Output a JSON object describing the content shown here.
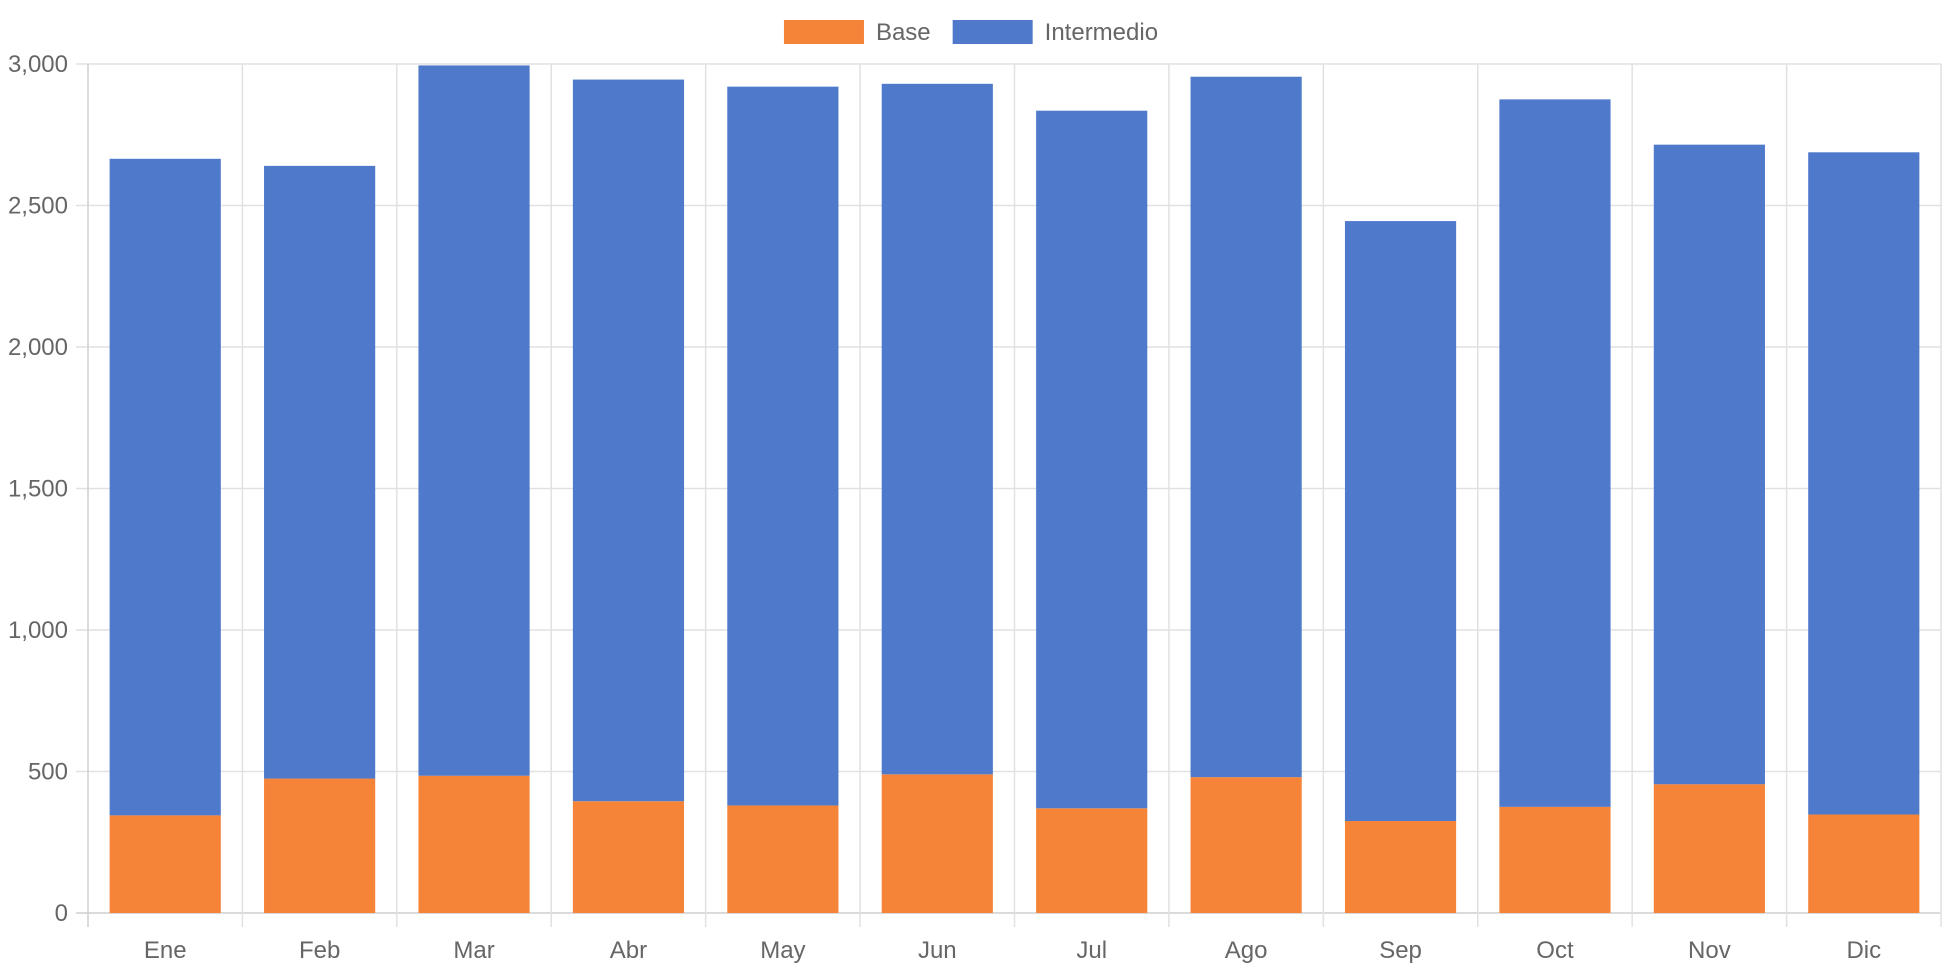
{
  "chart_data": {
    "type": "bar",
    "stacked": true,
    "title": "",
    "xlabel": "",
    "ylabel": "",
    "categories": [
      "Ene",
      "Feb",
      "Mar",
      "Abr",
      "May",
      "Jun",
      "Jul",
      "Ago",
      "Sep",
      "Oct",
      "Nov",
      "Dic"
    ],
    "series": [
      {
        "name": "Base",
        "color": "#f58338",
        "values": [
          345,
          475,
          485,
          395,
          380,
          490,
          370,
          480,
          325,
          375,
          455,
          348
        ]
      },
      {
        "name": "Intermedio",
        "color": "#4f7acb",
        "values": [
          2320,
          2165,
          2510,
          2550,
          2540,
          2440,
          2465,
          2475,
          2120,
          2500,
          2260,
          2340
        ]
      }
    ],
    "ylim": [
      0,
      3000
    ],
    "yticks": [
      0,
      500,
      1000,
      1500,
      2000,
      2500,
      3000
    ],
    "ytick_labels": [
      "0",
      "500",
      "1,000",
      "1,500",
      "2,000",
      "2,500",
      "3,000"
    ],
    "grid": true,
    "legend_position": "top-center"
  }
}
